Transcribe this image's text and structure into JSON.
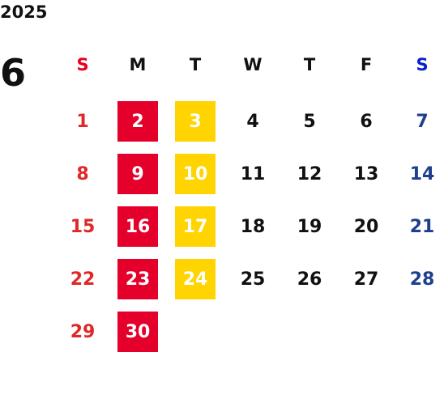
{
  "year": "2025",
  "month": "6",
  "weekdays": [
    "S",
    "M",
    "T",
    "W",
    "T",
    "F",
    "S"
  ],
  "weeks": [
    [
      1,
      2,
      3,
      4,
      5,
      6,
      7
    ],
    [
      8,
      9,
      10,
      11,
      12,
      13,
      14
    ],
    [
      15,
      16,
      17,
      18,
      19,
      20,
      21
    ],
    [
      22,
      23,
      24,
      25,
      26,
      27,
      28
    ],
    [
      29,
      30,
      null,
      null,
      null,
      null,
      null
    ]
  ]
}
